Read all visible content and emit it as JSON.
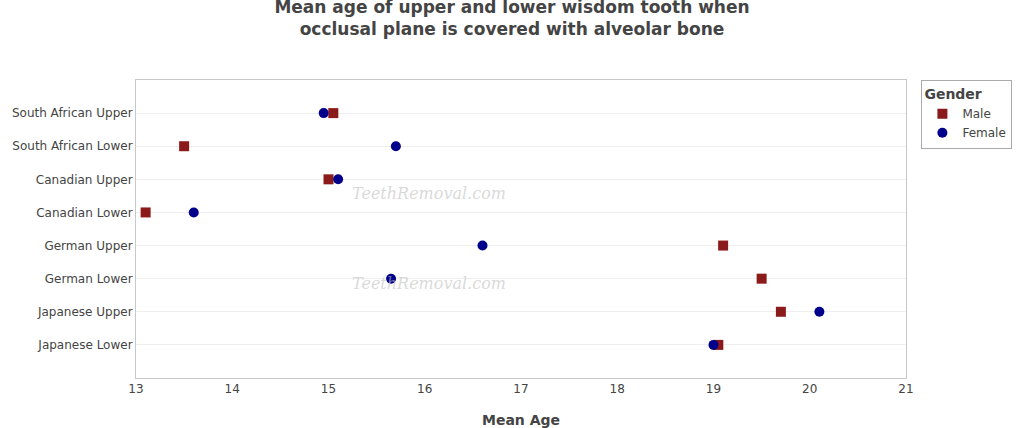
{
  "chart_data": {
    "type": "scatter",
    "title": "Mean age of upper and lower wisdom tooth when\nocclusal plane is covered with alveolar bone",
    "x_label": "Mean Age",
    "categories": [
      "South African Upper",
      "South African Lower",
      "Canadian Upper",
      "Canadian Lower",
      "German Upper",
      "German Lower",
      "Japanese Upper",
      "Japanese Lower"
    ],
    "series": [
      {
        "name": "Male",
        "color": "#8B1A1A",
        "marker": "square",
        "values": [
          15.05,
          13.5,
          15.0,
          13.1,
          19.1,
          19.5,
          19.7,
          19.05
        ]
      },
      {
        "name": "Female",
        "color": "#00008B",
        "marker": "circle",
        "values": [
          14.95,
          15.7,
          15.1,
          13.6,
          16.6,
          15.65,
          20.1,
          19.0
        ]
      }
    ],
    "legend_title": "Gender",
    "legend": "right",
    "xlim": [
      13,
      21
    ],
    "xticks": [
      13,
      14,
      15,
      16,
      17,
      18,
      19,
      20,
      21
    ],
    "grid": true,
    "annotations": [
      "TeethRemoval.com",
      "TeethRemoval.com"
    ]
  }
}
